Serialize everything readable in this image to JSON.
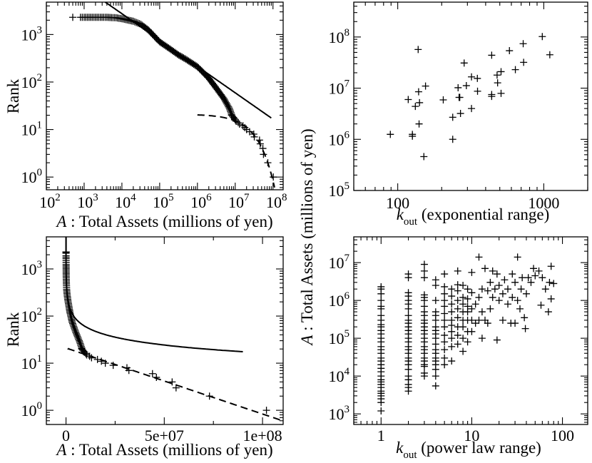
{
  "colors": {
    "ink": "#000000",
    "background": "#ffffff"
  },
  "shared_ylabel": {
    "italic": "A",
    "rest": " : Total Assets (millions of yen)"
  },
  "chart_data": [
    {
      "type": "scatter",
      "xlabel": {
        "italic": "A",
        "rest": " : Total Assets (millions of yen)"
      },
      "ylabel": "Rank",
      "xscale": "log",
      "yscale": "log",
      "xlim": [
        100,
        186000000
      ],
      "ylim": [
        0.54,
        4800
      ],
      "xticks": [
        100,
        1000,
        10000,
        100000,
        1000000,
        10000000,
        100000000
      ],
      "xtick_labels": [
        "10^2",
        "10^3",
        "10^4",
        "10^5",
        "10^6",
        "10^7",
        "10^8"
      ],
      "yticks": [
        1,
        10,
        100,
        1000
      ],
      "ytick_labels": [
        "10^0",
        "10^1",
        "10^2",
        "10^3"
      ],
      "marker": "plus",
      "points": [
        [
          500,
          2300
        ],
        [
          800,
          2300
        ],
        [
          1000,
          2300
        ],
        [
          2000,
          2300
        ],
        [
          4000,
          2300
        ],
        [
          7000,
          2250
        ],
        [
          10000,
          2150
        ],
        [
          20000,
          1900
        ],
        [
          31600,
          1650
        ],
        [
          50000,
          1250
        ],
        [
          100000,
          700
        ],
        [
          200000,
          480
        ],
        [
          316000,
          370
        ],
        [
          500000,
          300
        ],
        [
          1000000,
          210
        ],
        [
          2000000,
          120
        ],
        [
          3160000,
          74
        ],
        [
          5000000,
          45
        ],
        [
          7000000,
          28
        ],
        [
          8000000,
          21
        ],
        [
          8000000,
          20
        ],
        [
          8500000,
          19
        ],
        [
          9000000,
          18
        ],
        [
          9500000,
          17
        ],
        [
          10000000,
          16
        ],
        [
          10500000,
          15
        ],
        [
          12000000,
          14
        ],
        [
          13000000,
          13
        ],
        [
          16000000,
          12
        ],
        [
          18000000,
          11
        ],
        [
          20000000,
          10
        ],
        [
          24000000,
          9
        ],
        [
          31000000,
          8
        ],
        [
          32000000,
          7
        ],
        [
          44000000,
          6
        ],
        [
          46000000,
          5
        ],
        [
          54000000,
          4
        ],
        [
          56000000,
          3
        ],
        [
          73000000,
          2
        ],
        [
          102000000,
          1
        ]
      ],
      "fits": [
        {
          "form": "power",
          "style": "solid",
          "amplitude": 455000,
          "exponent": -0.555,
          "x_range": [
            3500,
            90000000
          ]
        },
        {
          "form": "exponential",
          "style": "dashed",
          "amplitude": 21,
          "scale": 31000000,
          "x_range": [
            1000000,
            110000000
          ]
        }
      ]
    },
    {
      "type": "scatter",
      "xlabel": {
        "main": "k",
        "sub": "out",
        "rest": " (exponential range)"
      },
      "ylabel": "",
      "xscale": "log",
      "yscale": "log",
      "xlim": [
        50,
        2000
      ],
      "ylim": [
        100000,
        480000000
      ],
      "xticks": [
        100,
        1000
      ],
      "xtick_labels": [
        "100",
        "1000"
      ],
      "yticks": [
        100000,
        1000000,
        10000000,
        100000000
      ],
      "ytick_labels": [
        "10^5",
        "10^6",
        "10^7",
        "10^8"
      ],
      "marker": "plus",
      "points": [
        [
          89,
          1250000
        ],
        [
          118,
          6000000
        ],
        [
          132,
          4400000
        ],
        [
          138,
          57000000
        ],
        [
          139,
          8500000
        ],
        [
          141,
          5200000
        ],
        [
          126,
          1250000
        ],
        [
          126,
          1150000
        ],
        [
          140,
          2000000
        ],
        [
          151,
          460000
        ],
        [
          155,
          11000000
        ],
        [
          205,
          5900000
        ],
        [
          238,
          1000000
        ],
        [
          238,
          2700000
        ],
        [
          259,
          10200000
        ],
        [
          263,
          6600000
        ],
        [
          266,
          6600000
        ],
        [
          269,
          3200000
        ],
        [
          285,
          31000000
        ],
        [
          295,
          11200000
        ],
        [
          320,
          4000000
        ],
        [
          320,
          16600000
        ],
        [
          351,
          15500000
        ],
        [
          352,
          8700000
        ],
        [
          440,
          44000000
        ],
        [
          440,
          7500000
        ],
        [
          440,
          6900000
        ],
        [
          479,
          18000000
        ],
        [
          483,
          12700000
        ],
        [
          510,
          21000000
        ],
        [
          510,
          7900000
        ],
        [
          582,
          54000000
        ],
        [
          639,
          23000000
        ],
        [
          723,
          74000000
        ],
        [
          728,
          32000000
        ],
        [
          977,
          102000000
        ],
        [
          1100,
          45000000
        ]
      ]
    },
    {
      "type": "scatter",
      "xlabel": {
        "italic": "A",
        "rest": " : Total Assets (millions of yen)"
      },
      "ylabel": "Rank",
      "xscale": "linear",
      "yscale": "log",
      "xlim": [
        -10000000,
        110500000
      ],
      "ylim": [
        0.5,
        4800
      ],
      "xticks": [
        0,
        50000000,
        100000000
      ],
      "xtick_labels": [
        "0",
        "5e+07",
        "1e+08"
      ],
      "xminor": [
        25000000,
        75000000
      ],
      "yticks": [
        1,
        10,
        100,
        1000
      ],
      "ytick_labels": [
        "10^0",
        "10^1",
        "10^2",
        "10^3"
      ],
      "marker": "plus",
      "same_points_as": "panel 1",
      "fits": "same as panel 1"
    },
    {
      "type": "scatter",
      "xlabel": {
        "main": "k",
        "sub": "out",
        "rest": " (power law range)"
      },
      "ylabel": "",
      "xscale": "log",
      "yscale": "log",
      "xlim": [
        0.5,
        190
      ],
      "ylim": [
        525,
        48000000
      ],
      "xticks": [
        1,
        10,
        100
      ],
      "xtick_labels": [
        "1",
        "10",
        "100"
      ],
      "yticks": [
        1000,
        10000,
        100000,
        1000000,
        10000000
      ],
      "ytick_labels": [
        "10^3",
        "10^4",
        "10^5",
        "10^6",
        "10^7"
      ],
      "marker": "plus",
      "columns": {
        "1": [
          1200,
          2000,
          2500,
          3000,
          3500,
          4000,
          5000,
          6000,
          7000,
          8000,
          10000,
          13000,
          16000,
          20000,
          25000,
          30000,
          40000,
          50000,
          60000,
          80000,
          100000,
          130000,
          160000,
          200000,
          230000,
          300000,
          400000,
          600000,
          700000,
          1000000,
          1500000,
          2000000,
          2300000
        ],
        "2": [
          4000,
          5000,
          6000,
          8000,
          10000,
          15000,
          20000,
          25000,
          30000,
          40000,
          50000,
          60000,
          80000,
          100000,
          130000,
          160000,
          200000,
          250000,
          300000,
          400000,
          600000,
          800000,
          1000000,
          1300000,
          1600000,
          4000000,
          5000000
        ],
        "3": [
          10000,
          12000,
          18000,
          20000,
          25000,
          30000,
          40000,
          50000,
          60000,
          80000,
          100000,
          130000,
          160000,
          200000,
          250000,
          300000,
          400000,
          500000,
          700000,
          1000000,
          1200000,
          1400000,
          4000000,
          6000000,
          9000000
        ],
        "4": [
          5500,
          10000,
          15000,
          20000,
          25000,
          30000,
          40000,
          50000,
          70000,
          100000,
          130000,
          160000,
          200000,
          300000,
          400000,
          500000,
          1000000,
          2500000,
          3500000
        ],
        "5": [
          20000,
          30000,
          50000,
          80000,
          120000,
          200000,
          300000,
          450000,
          700000,
          1000000,
          1500000,
          2300000,
          5000000
        ],
        "6": [
          25000,
          60000,
          100000,
          150000,
          220000,
          300000,
          500000,
          800000,
          1300000,
          2000000
        ],
        "7": [
          70000,
          120000,
          200000,
          350000,
          600000,
          1000000,
          1800000,
          2600000,
          6000000
        ],
        "8": [
          45000,
          100000,
          200000,
          300000,
          500000,
          800000,
          1200000,
          2500000
        ],
        "9": [
          80000,
          150000,
          300000,
          500000,
          700000,
          1100000,
          2000000
        ]
      },
      "points": [
        [
          10,
          150000
        ],
        [
          10,
          300000
        ],
        [
          10,
          600000
        ],
        [
          10,
          1600000
        ],
        [
          10,
          5500000
        ],
        [
          11,
          250000
        ],
        [
          11,
          800000
        ],
        [
          12,
          14000000
        ],
        [
          12,
          300000
        ],
        [
          12,
          1200000
        ],
        [
          13,
          100000
        ],
        [
          13,
          500000
        ],
        [
          13,
          2000000
        ],
        [
          14,
          7000000
        ],
        [
          14,
          300000
        ],
        [
          15,
          1800000
        ],
        [
          15,
          250000
        ],
        [
          16,
          3000000
        ],
        [
          16,
          600000
        ],
        [
          17,
          6000000
        ],
        [
          17,
          1200000
        ],
        [
          18,
          2000000
        ],
        [
          19,
          90000
        ],
        [
          19,
          5000000
        ],
        [
          20,
          2500000
        ],
        [
          20,
          1000000
        ],
        [
          22,
          300000
        ],
        [
          22,
          1500000
        ],
        [
          23,
          3500000
        ],
        [
          25,
          800000
        ],
        [
          25,
          2000000
        ],
        [
          27,
          250000
        ],
        [
          28,
          5000000
        ],
        [
          28,
          1200000
        ],
        [
          30,
          250000
        ],
        [
          30,
          3000000
        ],
        [
          32,
          14000000
        ],
        [
          32,
          1000000
        ],
        [
          34,
          600000
        ],
        [
          35,
          2000000
        ],
        [
          36,
          4000000
        ],
        [
          38,
          350000
        ],
        [
          39,
          180000
        ],
        [
          40,
          1500000
        ],
        [
          42,
          4000000
        ],
        [
          45,
          3000000
        ],
        [
          48,
          7000000
        ],
        [
          50,
          4500000
        ],
        [
          55,
          6000000
        ],
        [
          58,
          750000
        ],
        [
          60,
          4000000
        ],
        [
          65,
          2000000
        ],
        [
          70,
          500000
        ],
        [
          72,
          3000000
        ],
        [
          75,
          1100000
        ],
        [
          75,
          8000000
        ],
        [
          80,
          2800000
        ]
      ]
    }
  ]
}
